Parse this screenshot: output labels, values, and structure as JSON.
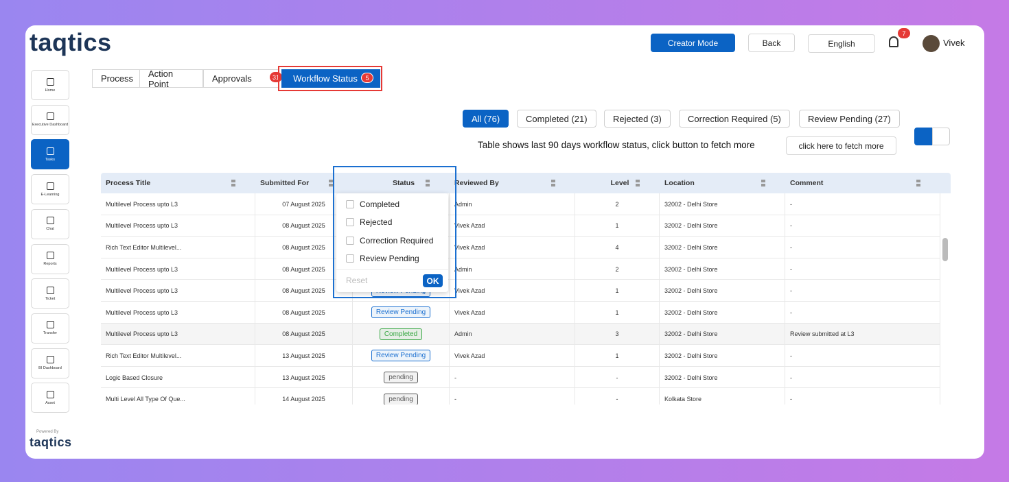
{
  "header": {
    "logo": "taqtics",
    "creator_mode": "Creator Mode",
    "back": "Back",
    "language": "English",
    "notifications": "7",
    "user": "Vivek"
  },
  "sidebar": {
    "items": [
      "Home",
      "Executive Dashboard",
      "Tasks",
      "E-Learning",
      "Chat",
      "Reports",
      "Ticket",
      "Transfer",
      "BI Dashboard",
      "Asset"
    ],
    "active": 2,
    "powered_by": "Powered By",
    "footer_logo": "taqtics"
  },
  "tabs": [
    {
      "label": "Process",
      "badge": null
    },
    {
      "label": "Action Point",
      "badge": null
    },
    {
      "label": "Approvals",
      "badge": "31"
    },
    {
      "label": "Workflow Status",
      "badge": "5"
    }
  ],
  "active_tab": 3,
  "filters": [
    "All (76)",
    "Completed (21)",
    "Rejected (3)",
    "Correction Required (5)",
    "Review Pending (27)"
  ],
  "active_filter": 0,
  "info": {
    "text": "Table shows last 90 days workflow status, click button to fetch more",
    "button": "click here to fetch more"
  },
  "table": {
    "columns": [
      "Process Title",
      "Submitted For",
      "Status",
      "Reviewed By",
      "Level",
      "Location",
      "Comment"
    ],
    "rows": [
      {
        "title": "Multilevel Process upto L3",
        "submitted_for": "07 August 2025",
        "status": null,
        "status_color": null,
        "reviewed_by": "Admin",
        "level": "2",
        "location": "32002 - Delhi Store",
        "comment": "-"
      },
      {
        "title": "Multilevel Process upto L3",
        "submitted_for": "08 August 2025",
        "status": null,
        "status_color": null,
        "reviewed_by": "Vivek Azad",
        "level": "1",
        "location": "32002 - Delhi Store",
        "comment": "-"
      },
      {
        "title": "Rich Text Editor Multilevel...",
        "submitted_for": "08 August 2025",
        "status": null,
        "status_color": null,
        "reviewed_by": "Vivek Azad",
        "level": "4",
        "location": "32002 - Delhi Store",
        "comment": "-"
      },
      {
        "title": "Multilevel Process upto L3",
        "submitted_for": "08 August 2025",
        "status": null,
        "status_color": null,
        "reviewed_by": "Admin",
        "level": "2",
        "location": "32002 - Delhi Store",
        "comment": "-"
      },
      {
        "title": "Multilevel Process upto L3",
        "submitted_for": "08 August 2025",
        "status": "Review Pending",
        "status_color": "#1a6fd0",
        "reviewed_by": "Vivek Azad",
        "level": "1",
        "location": "32002 - Delhi Store",
        "comment": "-"
      },
      {
        "title": "Multilevel Process upto L3",
        "submitted_for": "08 August 2025",
        "status": "Review Pending",
        "status_color": "#1a6fd0",
        "reviewed_by": "Vivek Azad",
        "level": "1",
        "location": "32002 - Delhi Store",
        "comment": "-"
      },
      {
        "title": "Multilevel Process upto L3",
        "submitted_for": "08 August 2025",
        "status": "Completed",
        "status_color": "#3aa845",
        "reviewed_by": "Admin",
        "level": "3",
        "location": "32002 - Delhi Store",
        "comment": "Review submitted at L3"
      },
      {
        "title": "Rich Text Editor Multilevel...",
        "submitted_for": "13 August 2025",
        "status": "Review Pending",
        "status_color": "#1a6fd0",
        "reviewed_by": "Vivek Azad",
        "level": "1",
        "location": "32002 - Delhi Store",
        "comment": "-"
      },
      {
        "title": "Logic Based Closure",
        "submitted_for": "13 August 2025",
        "status": "pending",
        "status_color": "#555555",
        "reviewed_by": "-",
        "level": "-",
        "location": "32002 - Delhi Store",
        "comment": "-"
      },
      {
        "title": "Multi Level All Type Of Que...",
        "submitted_for": "14 August 2025",
        "status": "pending",
        "status_color": "#555555",
        "reviewed_by": "-",
        "level": "-",
        "location": "Kolkata Store",
        "comment": "-"
      }
    ]
  },
  "status_dropdown": {
    "options": [
      "Completed",
      "Rejected",
      "Correction Required",
      "Review Pending"
    ],
    "reset": "Reset",
    "ok": "OK"
  }
}
